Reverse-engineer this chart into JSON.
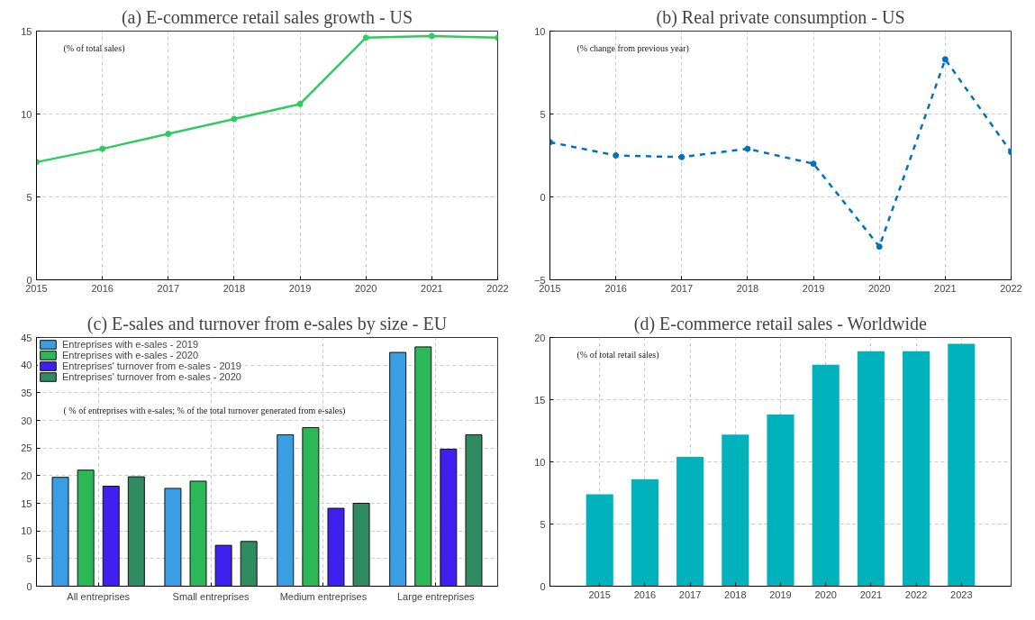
{
  "chart_data": [
    {
      "type": "line",
      "title": "(a) E-commerce retail sales growth - US",
      "x": [
        2015,
        2016,
        2017,
        2018,
        2019,
        2020,
        2021,
        2022
      ],
      "annotations": [
        "(% of total sales)"
      ],
      "series": [
        {
          "color": "#2ecc60",
          "values": [
            7.1,
            7.9,
            8.8,
            9.7,
            10.6,
            14.6,
            14.7,
            14.6
          ]
        }
      ],
      "xlim": [
        2015,
        2022
      ],
      "xticks": [
        2015,
        2016,
        2017,
        2018,
        2019,
        2020,
        2021,
        2022
      ],
      "ylim": [
        0,
        15
      ],
      "yticks": [
        0,
        5,
        10,
        15
      ],
      "grid": true,
      "marker": "circle",
      "line_style": "solid"
    },
    {
      "type": "line",
      "title": "(b) Real private consumption - US",
      "x": [
        2015,
        2016,
        2017,
        2018,
        2019,
        2020,
        2021,
        2022
      ],
      "annotations": [
        "(% change from previous year)"
      ],
      "series": [
        {
          "color": "#0072bd",
          "values": [
            3.3,
            2.5,
            2.4,
            2.9,
            2.0,
            -3.0,
            8.3,
            2.7
          ]
        }
      ],
      "xlim": [
        2015,
        2022
      ],
      "xticks": [
        2015,
        2016,
        2017,
        2018,
        2019,
        2020,
        2021,
        2022
      ],
      "ylim": [
        -5,
        10
      ],
      "yticks": [
        -5,
        0,
        5,
        10
      ],
      "grid": true,
      "marker": "circle",
      "line_style": "dashed"
    },
    {
      "type": "bar",
      "title": "(c) E-sales and turnover from e-sales by size - EU",
      "categories": [
        "All entreprises",
        "Small entreprises",
        "Medium entreprises",
        "Large entreprises"
      ],
      "annotations": [
        "( % of entreprises with e-sales; % of the total turnover generated from e-sales)"
      ],
      "series": [
        {
          "name": "Entreprises with e-sales - 2019",
          "color": "#3a9ee4",
          "values": [
            19.7,
            17.7,
            27.4,
            42.3
          ]
        },
        {
          "name": "Entreprises with e-sales - 2020",
          "color": "#2db857",
          "values": [
            21.0,
            19.0,
            28.7,
            43.3
          ]
        },
        {
          "name": "Entreprises' turnover from e-sales - 2019",
          "color": "#4020ee",
          "values": [
            18.1,
            7.4,
            14.1,
            24.8
          ]
        },
        {
          "name": "Entreprises' turnover from e-sales - 2020",
          "color": "#2e8b62",
          "values": [
            19.8,
            8.1,
            15.0,
            27.4
          ]
        }
      ],
      "ylim": [
        0,
        45
      ],
      "yticks": [
        0,
        5,
        10,
        15,
        20,
        25,
        30,
        35,
        40,
        45
      ],
      "grid": true,
      "legend": "top left"
    },
    {
      "type": "bar",
      "title": "(d) E-commerce retail sales - Worldwide",
      "categories": [
        "2015",
        "2016",
        "2017",
        "2018",
        "2019",
        "2020",
        "2021",
        "2022",
        "2023"
      ],
      "annotations": [
        "(% of total retail sales)"
      ],
      "series": [
        {
          "color": "#00b2bc",
          "values": [
            7.4,
            8.6,
            10.4,
            12.2,
            13.8,
            17.8,
            18.9,
            18.9,
            19.5
          ]
        }
      ],
      "ylim": [
        0,
        20
      ],
      "yticks": [
        0,
        5,
        10,
        15,
        20
      ],
      "grid": true
    }
  ]
}
